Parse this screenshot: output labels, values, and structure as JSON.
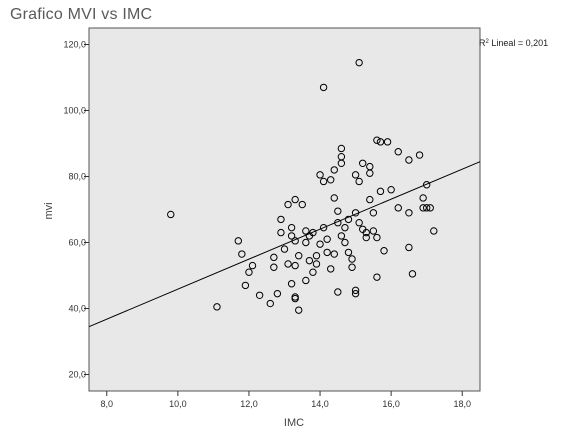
{
  "title": "Grafico MVI vs IMC",
  "chart_data": {
    "type": "scatter",
    "title": "Grafico MVI vs IMC",
    "xlabel": "IMC",
    "ylabel": "mvi",
    "xlim": [
      7.5,
      18.5
    ],
    "ylim": [
      15,
      125
    ],
    "x_ticks": [
      8,
      10,
      12,
      14,
      16,
      18
    ],
    "y_ticks": [
      20,
      40,
      60,
      80,
      100,
      120
    ],
    "x_tick_labels": [
      "8,0",
      "10,0",
      "12,0",
      "14,0",
      "16,0",
      "18,0"
    ],
    "y_tick_labels": [
      "20,0",
      "40,0",
      "60,0",
      "80,0",
      "100,0",
      "120,0"
    ],
    "grid": false,
    "background": "#e8e8e8",
    "point_color": "#000000",
    "fit_line": {
      "x": [
        7.5,
        18.5
      ],
      "y": [
        34.5,
        84.5
      ]
    },
    "annotation": {
      "r2_prefix": "R",
      "r2_sup": "2",
      "r2_text": " Lineal = 0,201"
    },
    "points": [
      {
        "x": 9.8,
        "y": 68.5
      },
      {
        "x": 11.1,
        "y": 40.5
      },
      {
        "x": 11.7,
        "y": 60.5
      },
      {
        "x": 11.8,
        "y": 56.5
      },
      {
        "x": 11.9,
        "y": 47
      },
      {
        "x": 12.0,
        "y": 51
      },
      {
        "x": 12.1,
        "y": 53
      },
      {
        "x": 12.3,
        "y": 44
      },
      {
        "x": 12.6,
        "y": 41.5
      },
      {
        "x": 12.7,
        "y": 52.5
      },
      {
        "x": 12.7,
        "y": 55.5
      },
      {
        "x": 12.8,
        "y": 44.5
      },
      {
        "x": 12.9,
        "y": 63
      },
      {
        "x": 12.9,
        "y": 67
      },
      {
        "x": 13.0,
        "y": 58
      },
      {
        "x": 13.1,
        "y": 71.5
      },
      {
        "x": 13.1,
        "y": 53.5
      },
      {
        "x": 13.2,
        "y": 62
      },
      {
        "x": 13.2,
        "y": 64.5
      },
      {
        "x": 13.2,
        "y": 47.5
      },
      {
        "x": 13.3,
        "y": 73
      },
      {
        "x": 13.3,
        "y": 60.5
      },
      {
        "x": 13.3,
        "y": 53
      },
      {
        "x": 13.3,
        "y": 43.5
      },
      {
        "x": 13.3,
        "y": 43
      },
      {
        "x": 13.4,
        "y": 39.5
      },
      {
        "x": 13.4,
        "y": 56
      },
      {
        "x": 13.5,
        "y": 71.5
      },
      {
        "x": 13.6,
        "y": 63.5
      },
      {
        "x": 13.6,
        "y": 60
      },
      {
        "x": 13.6,
        "y": 48.5
      },
      {
        "x": 13.7,
        "y": 62
      },
      {
        "x": 13.7,
        "y": 54.5
      },
      {
        "x": 13.8,
        "y": 63
      },
      {
        "x": 13.8,
        "y": 51
      },
      {
        "x": 13.9,
        "y": 56
      },
      {
        "x": 13.9,
        "y": 53.5
      },
      {
        "x": 14.0,
        "y": 80.5
      },
      {
        "x": 14.0,
        "y": 59.5
      },
      {
        "x": 14.1,
        "y": 78.5
      },
      {
        "x": 14.1,
        "y": 64.5
      },
      {
        "x": 14.1,
        "y": 107
      },
      {
        "x": 14.2,
        "y": 61
      },
      {
        "x": 14.2,
        "y": 57
      },
      {
        "x": 14.3,
        "y": 52
      },
      {
        "x": 14.3,
        "y": 79
      },
      {
        "x": 14.4,
        "y": 82
      },
      {
        "x": 14.4,
        "y": 73.5
      },
      {
        "x": 14.4,
        "y": 56.5
      },
      {
        "x": 14.5,
        "y": 69.5
      },
      {
        "x": 14.5,
        "y": 66
      },
      {
        "x": 14.5,
        "y": 45
      },
      {
        "x": 14.6,
        "y": 88.5
      },
      {
        "x": 14.6,
        "y": 86
      },
      {
        "x": 14.6,
        "y": 84
      },
      {
        "x": 14.6,
        "y": 62
      },
      {
        "x": 14.7,
        "y": 64.5
      },
      {
        "x": 14.7,
        "y": 60
      },
      {
        "x": 14.8,
        "y": 67
      },
      {
        "x": 14.8,
        "y": 57
      },
      {
        "x": 14.9,
        "y": 55
      },
      {
        "x": 14.9,
        "y": 52.5
      },
      {
        "x": 15.0,
        "y": 80.5
      },
      {
        "x": 15.0,
        "y": 69
      },
      {
        "x": 15.0,
        "y": 45.5
      },
      {
        "x": 15.0,
        "y": 44.5
      },
      {
        "x": 15.1,
        "y": 114.5
      },
      {
        "x": 15.1,
        "y": 78.5
      },
      {
        "x": 15.1,
        "y": 66
      },
      {
        "x": 15.2,
        "y": 84
      },
      {
        "x": 15.2,
        "y": 64
      },
      {
        "x": 15.3,
        "y": 63
      },
      {
        "x": 15.3,
        "y": 61.5
      },
      {
        "x": 15.4,
        "y": 83
      },
      {
        "x": 15.4,
        "y": 81
      },
      {
        "x": 15.4,
        "y": 73
      },
      {
        "x": 15.5,
        "y": 69
      },
      {
        "x": 15.5,
        "y": 63.5
      },
      {
        "x": 15.6,
        "y": 91
      },
      {
        "x": 15.6,
        "y": 61.5
      },
      {
        "x": 15.6,
        "y": 49.5
      },
      {
        "x": 15.7,
        "y": 90.5
      },
      {
        "x": 15.7,
        "y": 75.5
      },
      {
        "x": 15.8,
        "y": 57.5
      },
      {
        "x": 15.9,
        "y": 90.5
      },
      {
        "x": 16.0,
        "y": 76
      },
      {
        "x": 16.2,
        "y": 70.5
      },
      {
        "x": 16.2,
        "y": 87.5
      },
      {
        "x": 16.5,
        "y": 85
      },
      {
        "x": 16.5,
        "y": 58.5
      },
      {
        "x": 16.5,
        "y": 69
      },
      {
        "x": 16.6,
        "y": 50.5
      },
      {
        "x": 16.8,
        "y": 86.5
      },
      {
        "x": 16.9,
        "y": 70.5
      },
      {
        "x": 16.9,
        "y": 73.5
      },
      {
        "x": 17.0,
        "y": 77.5
      },
      {
        "x": 17.0,
        "y": 70.5
      },
      {
        "x": 17.1,
        "y": 70.5
      },
      {
        "x": 17.2,
        "y": 63.5
      }
    ]
  }
}
